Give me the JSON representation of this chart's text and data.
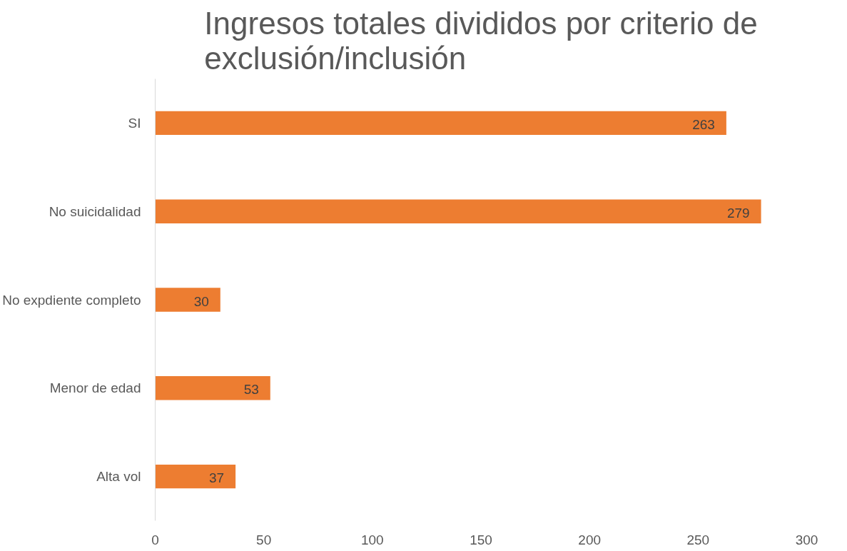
{
  "chart_data": {
    "type": "bar",
    "orientation": "horizontal",
    "title": "Ingresos totales divididos por criterio de exclusión/inclusión",
    "categories": [
      "SI",
      "No suicidalidad",
      "No expdiente completo",
      "Menor de edad",
      "Alta vol"
    ],
    "values": [
      263,
      279,
      30,
      53,
      37
    ],
    "color": "#ed7d31",
    "xlim": [
      0,
      300
    ],
    "xticks": [
      0,
      50,
      100,
      150,
      200,
      250,
      300
    ],
    "grid": false,
    "data_labels": true
  }
}
